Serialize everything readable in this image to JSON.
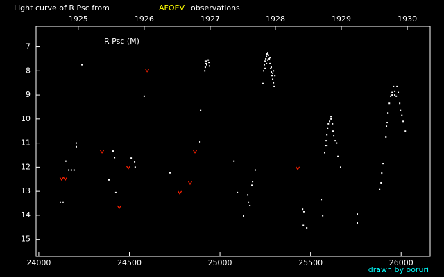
{
  "chart_data": {
    "type": "scatter",
    "title": "Light curve of R Psc from",
    "title_source": "AFOEV",
    "title_suffix": "observations",
    "annotation": "R Psc (M)",
    "credit": "drawn by ooruri",
    "background": "#000000",
    "title_source_color": "#ffff00",
    "credit_color": "#00ffff",
    "xlim": [
      23985,
      26160
    ],
    "ylim": [
      15.7,
      6.15
    ],
    "xticks": [
      24000,
      24500,
      25000,
      25500,
      26000
    ],
    "x2ticks": [
      {
        "value": 24218,
        "label": "1925"
      },
      {
        "value": 24582,
        "label": "1926"
      },
      {
        "value": 24946,
        "label": "1927"
      },
      {
        "value": 25306,
        "label": "1928"
      },
      {
        "value": 25670,
        "label": "1929"
      },
      {
        "value": 26034,
        "label": "1930"
      }
    ],
    "yticks": [
      7,
      8,
      9,
      10,
      11,
      12,
      13,
      14,
      15
    ],
    "grid": false,
    "series": [
      {
        "color": "#ffffff",
        "marker": "dot",
        "x": [
          24119,
          24134,
          24149,
          24165,
          24180,
          24195,
          24207,
          24207,
          24238,
          24387,
          24410,
          24418,
          24425,
          24510,
          24529,
          24532,
          24582,
          24724,
          24889,
          24893,
          24916,
          24919,
          24923,
          24927,
          24935,
          24939,
          24942,
          24919,
          24927,
          25077,
          25096,
          25130,
          25153,
          25157,
          25165,
          25176,
          25180,
          25195,
          25237,
          25241,
          25245,
          25249,
          25253,
          25257,
          25260,
          25264,
          25268,
          25272,
          25276,
          25280,
          25283,
          25287,
          25291,
          25295,
          25299,
          25303,
          25249,
          25257,
          25264,
          25276,
          25283,
          25291,
          25295,
          25456,
          25463,
          25460,
          25479,
          25559,
          25567,
          25578,
          25582,
          25586,
          25590,
          25594,
          25598,
          25605,
          25613,
          25621,
          25624,
          25628,
          25636,
          25644,
          25651,
          25666,
          25590,
          25613,
          25758,
          25758,
          25881,
          25889,
          25893,
          25900,
          25916,
          25919,
          25923,
          25927,
          25935,
          25942,
          25950,
          25958,
          25965,
          25973,
          25977,
          25984,
          25992,
          25996,
          26004,
          26011,
          26023,
          25950,
          25965
        ],
        "values": [
          13.45,
          13.45,
          11.75,
          12.12,
          12.12,
          12.12,
          11.0,
          11.15,
          7.75,
          12.53,
          11.33,
          11.6,
          13.05,
          11.62,
          11.78,
          12.0,
          9.05,
          12.24,
          10.95,
          9.65,
          8.0,
          7.85,
          7.7,
          7.6,
          7.55,
          7.65,
          7.8,
          7.6,
          7.75,
          11.75,
          13.05,
          14.03,
          13.15,
          13.45,
          13.6,
          12.75,
          12.6,
          12.12,
          8.53,
          8.0,
          7.75,
          7.6,
          7.5,
          7.4,
          7.3,
          7.25,
          7.35,
          7.5,
          7.7,
          7.9,
          8.05,
          8.2,
          8.35,
          8.5,
          8.65,
          8.2,
          7.9,
          7.7,
          7.55,
          7.45,
          7.85,
          8.1,
          8.0,
          13.75,
          13.85,
          14.42,
          14.52,
          13.35,
          14.02,
          11.4,
          11.1,
          10.9,
          10.65,
          10.4,
          10.2,
          10.1,
          9.9,
          10.2,
          10.5,
          10.7,
          10.9,
          11.0,
          11.55,
          12.0,
          11.1,
          10.0,
          13.95,
          14.32,
          12.93,
          12.65,
          12.25,
          11.85,
          10.75,
          10.3,
          10.15,
          9.75,
          9.35,
          9.05,
          8.9,
          8.65,
          8.85,
          9.05,
          8.65,
          8.9,
          9.35,
          9.65,
          9.85,
          10.1,
          10.5,
          9.0,
          9.0
        ]
      },
      {
        "color": "#ff2000",
        "marker": "v",
        "x": [
          24126,
          24146,
          24349,
          24444,
          24494,
          24598,
          24778,
          24835,
          24862,
          25429
        ],
        "values": [
          12.48,
          12.48,
          11.35,
          13.66,
          12.01,
          7.98,
          13.05,
          12.65,
          11.35,
          12.04
        ]
      }
    ]
  }
}
